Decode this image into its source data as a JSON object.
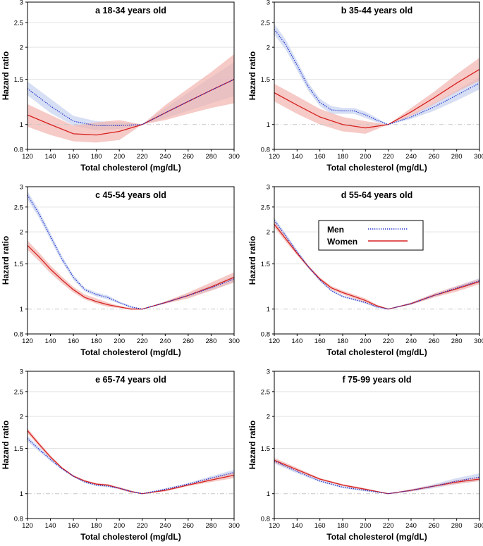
{
  "figure": {
    "x_axis_label": "Total cholesterol (mg/dL)",
    "y_axis_label": "Hazard ratio"
  },
  "legend": {
    "items": [
      {
        "label": "Men",
        "color": "#1f2ecc",
        "style": "dotted"
      },
      {
        "label": "Women",
        "color": "#d62020",
        "style": "solid"
      }
    ]
  },
  "colors": {
    "men_line": "#1f2ecc",
    "women_line": "#d62020",
    "men_band": "#c9d4f2",
    "women_band": "#f2b3ae",
    "reference_line": "#c8c8c8",
    "grid": "#e3e3e3"
  },
  "chart_data": [
    {
      "type": "line",
      "title": "a 18-34 years old",
      "xlabel": "Total cholesterol (mg/dL)",
      "ylabel": "Hazard ratio",
      "xlim": [
        120,
        300
      ],
      "ylim": [
        0.8,
        3
      ],
      "y_scale": "log",
      "x_ticks": [
        "120",
        "140",
        "160",
        "180",
        "200",
        "220",
        "240",
        "260",
        "280",
        "300"
      ],
      "y_ticks": [
        "0.8",
        "1",
        "1.5",
        "2",
        "2.5",
        "3"
      ],
      "reference_y": 1,
      "series": [
        {
          "name": "Men",
          "x": [
            120,
            140,
            160,
            180,
            200,
            220,
            240,
            260,
            280,
            300
          ],
          "values": [
            1.38,
            1.18,
            1.03,
            0.99,
            0.99,
            1.0,
            1.11,
            1.23,
            1.36,
            1.5
          ],
          "lower": [
            1.3,
            1.11,
            0.99,
            0.95,
            0.96,
            1.0,
            1.06,
            1.13,
            1.21,
            1.29
          ],
          "upper": [
            1.47,
            1.26,
            1.08,
            1.03,
            1.02,
            1.0,
            1.16,
            1.33,
            1.53,
            1.75
          ]
        },
        {
          "name": "Women",
          "x": [
            120,
            140,
            160,
            180,
            200,
            220,
            240,
            260,
            280,
            300
          ],
          "values": [
            1.09,
            1.0,
            0.92,
            0.91,
            0.94,
            1.0,
            1.11,
            1.23,
            1.36,
            1.5
          ],
          "lower": [
            0.98,
            0.91,
            0.86,
            0.85,
            0.87,
            1.0,
            1.04,
            1.1,
            1.16,
            1.21
          ],
          "upper": [
            1.2,
            1.09,
            0.99,
            1.02,
            1.04,
            1.0,
            1.19,
            1.38,
            1.6,
            1.88
          ]
        }
      ]
    },
    {
      "type": "line",
      "title": "b 35-44 years old",
      "xlabel": "Total cholesterol (mg/dL)",
      "ylabel": "Hazard ratio",
      "xlim": [
        120,
        300
      ],
      "ylim": [
        0.8,
        3
      ],
      "y_scale": "log",
      "x_ticks": [
        "120",
        "140",
        "160",
        "180",
        "200",
        "220",
        "240",
        "260",
        "280",
        "300"
      ],
      "y_ticks": [
        "0.8",
        "1",
        "1.5",
        "2",
        "2.5",
        "3"
      ],
      "reference_y": 1,
      "series": [
        {
          "name": "Men",
          "x": [
            120,
            130,
            140,
            150,
            160,
            170,
            180,
            190,
            200,
            210,
            220,
            240,
            260,
            280,
            300
          ],
          "values": [
            2.35,
            2.05,
            1.7,
            1.4,
            1.22,
            1.14,
            1.13,
            1.13,
            1.09,
            1.04,
            1.0,
            1.07,
            1.17,
            1.3,
            1.45
          ],
          "lower": [
            2.24,
            1.96,
            1.63,
            1.35,
            1.18,
            1.1,
            1.1,
            1.1,
            1.06,
            1.02,
            1.0,
            1.05,
            1.13,
            1.24,
            1.37
          ],
          "upper": [
            2.47,
            2.14,
            1.77,
            1.45,
            1.26,
            1.18,
            1.16,
            1.16,
            1.12,
            1.06,
            1.0,
            1.09,
            1.21,
            1.36,
            1.53
          ]
        },
        {
          "name": "Women",
          "x": [
            120,
            140,
            160,
            180,
            200,
            220,
            240,
            260,
            280,
            300
          ],
          "values": [
            1.33,
            1.19,
            1.07,
            1.0,
            0.97,
            1.0,
            1.12,
            1.27,
            1.45,
            1.64
          ],
          "lower": [
            1.23,
            1.1,
            1.0,
            0.94,
            0.92,
            1.0,
            1.08,
            1.2,
            1.34,
            1.48
          ],
          "upper": [
            1.44,
            1.29,
            1.15,
            1.07,
            1.03,
            1.0,
            1.16,
            1.34,
            1.57,
            1.82
          ]
        }
      ]
    },
    {
      "type": "line",
      "title": "c 45-54 years old",
      "xlabel": "Total cholesterol (mg/dL)",
      "ylabel": "Hazard ratio",
      "xlim": [
        120,
        300
      ],
      "ylim": [
        0.8,
        3
      ],
      "y_scale": "log",
      "x_ticks": [
        "120",
        "140",
        "160",
        "180",
        "200",
        "220",
        "240",
        "260",
        "280",
        "300"
      ],
      "y_ticks": [
        "0.8",
        "1",
        "1.5",
        "2",
        "2.5",
        "3"
      ],
      "reference_y": 1,
      "series": [
        {
          "name": "Men",
          "x": [
            120,
            130,
            140,
            150,
            160,
            170,
            180,
            190,
            200,
            210,
            220,
            240,
            260,
            280,
            300
          ],
          "values": [
            2.78,
            2.35,
            1.92,
            1.57,
            1.33,
            1.19,
            1.14,
            1.11,
            1.06,
            1.02,
            1.0,
            1.06,
            1.13,
            1.21,
            1.31
          ],
          "lower": [
            2.68,
            2.27,
            1.86,
            1.53,
            1.3,
            1.17,
            1.12,
            1.09,
            1.05,
            1.01,
            1.0,
            1.05,
            1.11,
            1.18,
            1.27
          ],
          "upper": [
            2.88,
            2.43,
            1.98,
            1.61,
            1.36,
            1.21,
            1.16,
            1.13,
            1.07,
            1.03,
            1.0,
            1.07,
            1.15,
            1.24,
            1.35
          ]
        },
        {
          "name": "Women",
          "x": [
            120,
            130,
            140,
            150,
            160,
            170,
            180,
            190,
            200,
            210,
            220,
            240,
            260,
            280,
            300
          ],
          "values": [
            1.77,
            1.6,
            1.43,
            1.3,
            1.19,
            1.11,
            1.07,
            1.04,
            1.02,
            1.0,
            1.0,
            1.06,
            1.13,
            1.22,
            1.33
          ],
          "lower": [
            1.7,
            1.54,
            1.38,
            1.26,
            1.16,
            1.09,
            1.05,
            1.02,
            1.01,
            1.0,
            1.0,
            1.05,
            1.1,
            1.18,
            1.27
          ],
          "upper": [
            1.85,
            1.66,
            1.48,
            1.34,
            1.22,
            1.14,
            1.1,
            1.06,
            1.03,
            1.01,
            1.0,
            1.07,
            1.16,
            1.27,
            1.39
          ]
        }
      ]
    },
    {
      "type": "line",
      "title": "d 55-64 years old",
      "xlabel": "Total cholesterol (mg/dL)",
      "ylabel": "Hazard ratio",
      "xlim": [
        120,
        300
      ],
      "ylim": [
        0.8,
        3
      ],
      "y_scale": "log",
      "x_ticks": [
        "120",
        "140",
        "160",
        "180",
        "200",
        "220",
        "240",
        "260",
        "280",
        "300"
      ],
      "y_ticks": [
        "0.8",
        "1",
        "1.5",
        "2",
        "2.5",
        "3"
      ],
      "reference_y": 1,
      "series": [
        {
          "name": "Men",
          "x": [
            120,
            130,
            140,
            150,
            160,
            170,
            180,
            190,
            200,
            210,
            220,
            240,
            260,
            280,
            300
          ],
          "values": [
            2.22,
            1.93,
            1.67,
            1.46,
            1.3,
            1.18,
            1.12,
            1.09,
            1.06,
            1.02,
            1.0,
            1.05,
            1.13,
            1.21,
            1.29
          ],
          "lower": [
            2.17,
            1.89,
            1.64,
            1.44,
            1.28,
            1.17,
            1.11,
            1.08,
            1.05,
            1.01,
            1.0,
            1.04,
            1.11,
            1.19,
            1.26
          ],
          "upper": [
            2.27,
            1.97,
            1.7,
            1.48,
            1.32,
            1.19,
            1.13,
            1.1,
            1.07,
            1.03,
            1.0,
            1.06,
            1.15,
            1.23,
            1.32
          ]
        },
        {
          "name": "Women",
          "x": [
            120,
            130,
            140,
            150,
            160,
            170,
            180,
            190,
            200,
            210,
            220,
            240,
            260,
            280,
            300
          ],
          "values": [
            2.14,
            1.88,
            1.65,
            1.46,
            1.31,
            1.21,
            1.16,
            1.12,
            1.08,
            1.03,
            1.0,
            1.05,
            1.13,
            1.2,
            1.28
          ],
          "lower": [
            2.08,
            1.83,
            1.62,
            1.44,
            1.29,
            1.19,
            1.14,
            1.1,
            1.06,
            1.02,
            1.0,
            1.04,
            1.11,
            1.17,
            1.25
          ],
          "upper": [
            2.2,
            1.93,
            1.68,
            1.48,
            1.33,
            1.23,
            1.18,
            1.14,
            1.1,
            1.04,
            1.0,
            1.06,
            1.15,
            1.23,
            1.31
          ]
        }
      ]
    },
    {
      "type": "line",
      "title": "e 65-74 years old",
      "xlabel": "Total cholesterol (mg/dL)",
      "ylabel": "Hazard ratio",
      "xlim": [
        120,
        300
      ],
      "ylim": [
        0.8,
        3
      ],
      "y_scale": "log",
      "x_ticks": [
        "120",
        "140",
        "160",
        "180",
        "200",
        "220",
        "240",
        "260",
        "280",
        "300"
      ],
      "y_ticks": [
        "0.8",
        "1",
        "1.5",
        "2",
        "2.5",
        "3"
      ],
      "reference_y": 1,
      "series": [
        {
          "name": "Men",
          "x": [
            120,
            130,
            140,
            150,
            160,
            170,
            180,
            190,
            200,
            210,
            220,
            240,
            260,
            280,
            300
          ],
          "values": [
            1.64,
            1.49,
            1.36,
            1.25,
            1.17,
            1.11,
            1.08,
            1.07,
            1.05,
            1.02,
            1.0,
            1.04,
            1.09,
            1.15,
            1.21
          ],
          "lower": [
            1.6,
            1.46,
            1.34,
            1.24,
            1.16,
            1.1,
            1.07,
            1.06,
            1.04,
            1.01,
            1.0,
            1.03,
            1.08,
            1.13,
            1.18
          ],
          "upper": [
            1.68,
            1.52,
            1.38,
            1.26,
            1.18,
            1.12,
            1.09,
            1.08,
            1.06,
            1.03,
            1.0,
            1.05,
            1.1,
            1.17,
            1.24
          ]
        },
        {
          "name": "Women",
          "x": [
            120,
            130,
            140,
            150,
            160,
            170,
            180,
            190,
            200,
            210,
            220,
            240,
            260,
            280,
            300
          ],
          "values": [
            1.76,
            1.56,
            1.39,
            1.26,
            1.17,
            1.12,
            1.09,
            1.08,
            1.05,
            1.02,
            1.0,
            1.03,
            1.08,
            1.13,
            1.18
          ],
          "lower": [
            1.72,
            1.53,
            1.37,
            1.25,
            1.16,
            1.11,
            1.08,
            1.07,
            1.04,
            1.01,
            1.0,
            1.02,
            1.07,
            1.11,
            1.15
          ],
          "upper": [
            1.8,
            1.59,
            1.41,
            1.27,
            1.18,
            1.13,
            1.1,
            1.09,
            1.06,
            1.03,
            1.0,
            1.04,
            1.09,
            1.15,
            1.21
          ]
        }
      ]
    },
    {
      "type": "line",
      "title": "f 75-99 years old",
      "xlabel": "Total cholesterol (mg/dL)",
      "ylabel": "Hazard ratio",
      "xlim": [
        120,
        300
      ],
      "ylim": [
        0.8,
        3
      ],
      "y_scale": "log",
      "x_ticks": [
        "120",
        "140",
        "160",
        "180",
        "200",
        "220",
        "240",
        "260",
        "280",
        "300"
      ],
      "y_ticks": [
        "0.8",
        "1",
        "1.5",
        "2",
        "2.5",
        "3"
      ],
      "reference_y": 1,
      "series": [
        {
          "name": "Men",
          "x": [
            120,
            140,
            160,
            180,
            200,
            220,
            240,
            260,
            280,
            300
          ],
          "values": [
            1.34,
            1.22,
            1.12,
            1.06,
            1.03,
            1.0,
            1.03,
            1.07,
            1.12,
            1.16
          ],
          "lower": [
            1.31,
            1.2,
            1.11,
            1.05,
            1.02,
            1.0,
            1.02,
            1.05,
            1.09,
            1.12
          ],
          "upper": [
            1.37,
            1.24,
            1.13,
            1.07,
            1.04,
            1.0,
            1.04,
            1.09,
            1.15,
            1.2
          ]
        },
        {
          "name": "Women",
          "x": [
            120,
            140,
            160,
            180,
            200,
            220,
            240,
            260,
            280,
            300
          ],
          "values": [
            1.35,
            1.24,
            1.14,
            1.08,
            1.04,
            1.0,
            1.03,
            1.07,
            1.11,
            1.14
          ],
          "lower": [
            1.32,
            1.22,
            1.13,
            1.07,
            1.03,
            1.0,
            1.02,
            1.06,
            1.09,
            1.12
          ],
          "upper": [
            1.38,
            1.26,
            1.15,
            1.09,
            1.05,
            1.0,
            1.04,
            1.08,
            1.13,
            1.16
          ]
        }
      ]
    }
  ]
}
